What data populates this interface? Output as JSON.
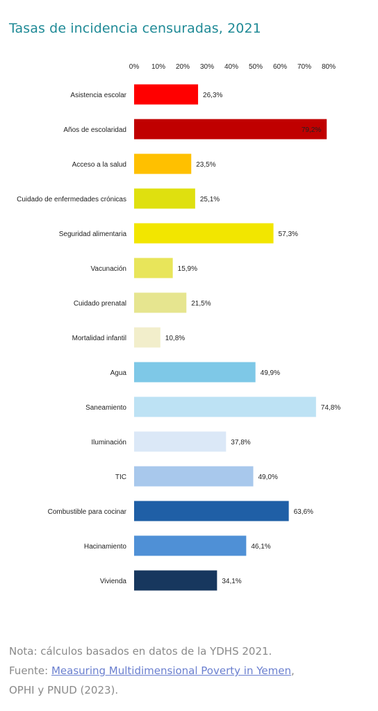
{
  "title": "Tasas de incidencia censuradas, 2021",
  "chart_data": {
    "type": "bar",
    "orientation": "horizontal",
    "title": "Tasas de incidencia censuradas, 2021",
    "xlim": [
      0,
      80
    ],
    "ticks": [
      "0%",
      "10%",
      "20%",
      "30%",
      "40%",
      "50%",
      "60%",
      "70%",
      "80%"
    ],
    "tick_position": "top",
    "grid": false,
    "categories": [
      "Asistencia escolar",
      "Años de escolaridad",
      "Acceso a la salud",
      "Cuidado de enfermedades crónicas",
      "Seguridad alimentaria",
      "Vacunación",
      "Cuidado prenatal",
      "Mortalidad infantil",
      "Agua",
      "Saneamiento",
      "Iluminación",
      "TIC",
      "Combustible para cocinar",
      "Hacinamiento",
      "Vivienda"
    ],
    "values": [
      26.3,
      79.2,
      23.5,
      25.1,
      57.3,
      15.9,
      21.5,
      10.8,
      49.9,
      74.8,
      37.8,
      49.0,
      63.6,
      46.1,
      34.1
    ],
    "value_labels": [
      "26,3%",
      "79,2%",
      "23,5%",
      "25,1%",
      "57,3%",
      "15,9%",
      "21,5%",
      "10,8%",
      "49,9%",
      "74,8%",
      "37,8%",
      "49,0%",
      "63,6%",
      "46,1%",
      "34,1%"
    ],
    "colors": [
      "#ff0000",
      "#c00000",
      "#ffc000",
      "#dfe00f",
      "#f2e600",
      "#e8e55a",
      "#e6e58f",
      "#f2eecb",
      "#7ec8e7",
      "#bde2f4",
      "#dbe8f7",
      "#a8c8ec",
      "#1f5fa6",
      "#4f90d6",
      "#17375e"
    ],
    "label_colors": [
      "#222222",
      "#ffffff",
      "#222222",
      "#222222",
      "#222222",
      "#222222",
      "#222222",
      "#222222",
      "#222222",
      "#222222",
      "#222222",
      "#222222",
      "#222222",
      "#222222",
      "#222222"
    ],
    "label_inside": [
      false,
      true,
      false,
      false,
      false,
      false,
      false,
      false,
      false,
      false,
      false,
      false,
      false,
      false,
      false
    ]
  },
  "note": {
    "prefix": "Nota: cálculos basados en datos de la YDHS 2021.",
    "source_label": "Fuente: ",
    "link_text": "Measuring Multidimensional Poverty in Yemen",
    "suffix": ",",
    "line3": "OPHI y PNUD (2023)."
  }
}
